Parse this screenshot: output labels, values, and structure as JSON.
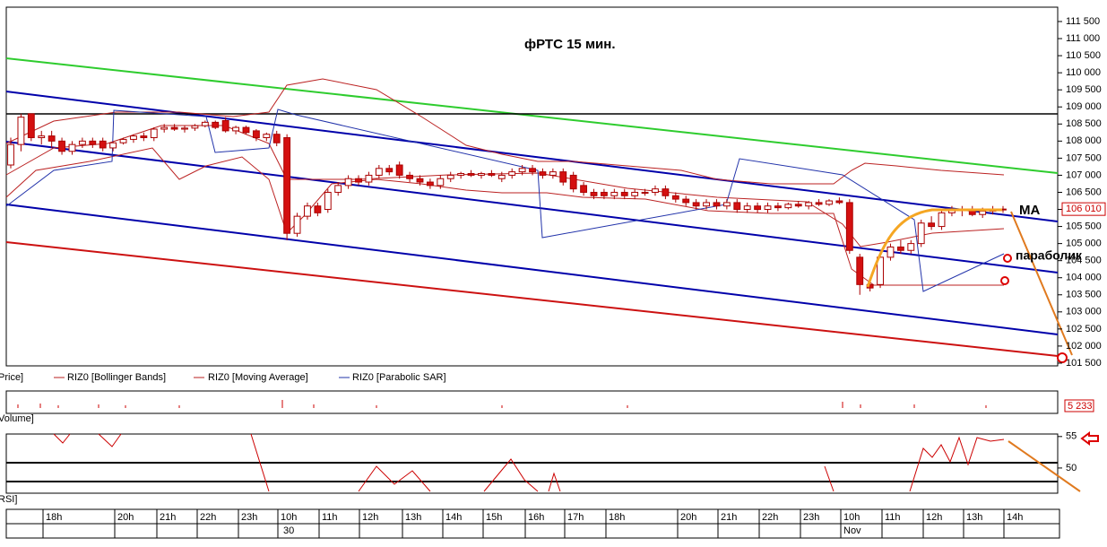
{
  "title": "фРТС  15 мин.",
  "chart_data": {
    "type": "candlestick",
    "ylim": [
      101420,
      111920
    ],
    "yticks": [
      {
        "value": 101500,
        "label": "101 500"
      },
      {
        "value": 102000,
        "label": "102 000"
      },
      {
        "value": 102500,
        "label": "102 500"
      },
      {
        "value": 103000,
        "label": "103 000"
      },
      {
        "value": 103500,
        "label": "103 500"
      },
      {
        "value": 104000,
        "label": "104 000"
      },
      {
        "value": 104500,
        "label": "104 500"
      },
      {
        "value": 105000,
        "label": "105 000"
      },
      {
        "value": 105500,
        "label": "105 500"
      },
      {
        "value": 106000,
        "label": "106 000"
      },
      {
        "value": 106500,
        "label": "106 500"
      },
      {
        "value": 107000,
        "label": "107 000"
      },
      {
        "value": 107500,
        "label": "107 500"
      },
      {
        "value": 108000,
        "label": "108 000"
      },
      {
        "value": 108500,
        "label": "108 500"
      },
      {
        "value": 109000,
        "label": "109 000"
      },
      {
        "value": 109500,
        "label": "109 500"
      },
      {
        "value": 110000,
        "label": "110 000"
      },
      {
        "value": 110500,
        "label": "110 500"
      },
      {
        "value": 111000,
        "label": "111 000"
      },
      {
        "value": 111500,
        "label": "111 500"
      }
    ],
    "last_price": {
      "value": 106010,
      "label": "106 010"
    },
    "candles": [
      [
        107300,
        108100,
        107200,
        107900
      ],
      [
        107900,
        108800,
        107700,
        108700
      ],
      [
        108800,
        108800,
        108000,
        108100
      ],
      [
        108100,
        108300,
        107900,
        108150
      ],
      [
        108150,
        108300,
        107800,
        108000
      ],
      [
        108000,
        108100,
        107600,
        107700
      ],
      [
        107700,
        108000,
        107600,
        107900
      ],
      [
        107900,
        108100,
        107800,
        108000
      ],
      [
        108000,
        108100,
        107800,
        107900
      ],
      [
        108000,
        108100,
        107700,
        107800
      ],
      [
        107800,
        108000,
        107700,
        107950
      ],
      [
        107950,
        108100,
        107900,
        108050
      ],
      [
        108050,
        108200,
        107950,
        108150
      ],
      [
        108150,
        108250,
        108000,
        108100
      ],
      [
        108100,
        108400,
        108000,
        108350
      ],
      [
        108350,
        108500,
        108250,
        108400
      ],
      [
        108400,
        108500,
        108300,
        108350
      ],
      [
        108350,
        108450,
        108250,
        108380
      ],
      [
        108380,
        108500,
        108300,
        108450
      ],
      [
        108450,
        108600,
        108400,
        108550
      ],
      [
        108550,
        108600,
        108350,
        108400
      ],
      [
        108600,
        108700,
        108250,
        108300
      ],
      [
        108300,
        108450,
        108200,
        108400
      ],
      [
        108400,
        108450,
        108200,
        108250
      ],
      [
        108300,
        108350,
        108000,
        108100
      ],
      [
        108100,
        108250,
        108000,
        108200
      ],
      [
        108200,
        108300,
        107850,
        107950
      ],
      [
        108100,
        108200,
        105100,
        105300
      ],
      [
        105300,
        105900,
        105200,
        105800
      ],
      [
        105800,
        106200,
        105700,
        106100
      ],
      [
        106100,
        106200,
        105800,
        105900
      ],
      [
        106000,
        106600,
        105900,
        106500
      ],
      [
        106500,
        106800,
        106400,
        106700
      ],
      [
        106700,
        107000,
        106600,
        106900
      ],
      [
        106900,
        107000,
        106700,
        106800
      ],
      [
        106800,
        107100,
        106700,
        107000
      ],
      [
        107000,
        107300,
        106900,
        107200
      ],
      [
        107200,
        107300,
        107000,
        107100
      ],
      [
        107300,
        107400,
        106900,
        107000
      ],
      [
        107000,
        107100,
        106800,
        106900
      ],
      [
        106900,
        107000,
        106700,
        106800
      ],
      [
        106800,
        106900,
        106600,
        106700
      ],
      [
        106700,
        107000,
        106600,
        106900
      ],
      [
        106900,
        107100,
        106800,
        107000
      ],
      [
        107000,
        107100,
        106900,
        107050
      ],
      [
        107050,
        107150,
        106950,
        107000
      ],
      [
        107000,
        107100,
        106900,
        107050
      ],
      [
        107050,
        107150,
        106950,
        107000
      ],
      [
        106900,
        107100,
        106800,
        107000
      ],
      [
        107000,
        107200,
        106900,
        107100
      ],
      [
        107100,
        107300,
        107000,
        107200
      ],
      [
        107200,
        107300,
        107000,
        107100
      ],
      [
        107100,
        107200,
        106900,
        107000
      ],
      [
        107000,
        107200,
        106900,
        107100
      ],
      [
        107100,
        107200,
        106700,
        106800
      ],
      [
        107000,
        107100,
        106500,
        106600
      ],
      [
        106700,
        106800,
        106400,
        106500
      ],
      [
        106500,
        106600,
        106300,
        106400
      ],
      [
        106500,
        106600,
        106300,
        106400
      ],
      [
        106400,
        106600,
        106300,
        106500
      ],
      [
        106500,
        106600,
        106300,
        106400
      ],
      [
        106400,
        106600,
        106300,
        106500
      ],
      [
        106500,
        106600,
        106400,
        106500
      ],
      [
        106500,
        106700,
        106400,
        106600
      ],
      [
        106600,
        106700,
        106300,
        106400
      ],
      [
        106400,
        106500,
        106200,
        106300
      ],
      [
        106300,
        106400,
        106100,
        106200
      ],
      [
        106200,
        106300,
        106000,
        106100
      ],
      [
        106100,
        106300,
        106000,
        106200
      ],
      [
        106200,
        106300,
        106000,
        106100
      ],
      [
        106100,
        106300,
        106000,
        106200
      ],
      [
        106200,
        106300,
        105900,
        106000
      ],
      [
        106000,
        106200,
        105900,
        106100
      ],
      [
        106100,
        106200,
        105900,
        106000
      ],
      [
        106000,
        106200,
        105900,
        106100
      ],
      [
        106100,
        106200,
        105950,
        106050
      ],
      [
        106050,
        106200,
        106000,
        106150
      ],
      [
        106150,
        106250,
        106050,
        106100
      ],
      [
        106100,
        106250,
        106000,
        106200
      ],
      [
        106200,
        106300,
        106100,
        106150
      ],
      [
        106150,
        106300,
        106100,
        106250
      ],
      [
        106250,
        106350,
        106150,
        106200
      ],
      [
        106200,
        106300,
        104700,
        104800
      ],
      [
        104600,
        104700,
        103500,
        103800
      ],
      [
        103800,
        104000,
        103600,
        103700
      ],
      [
        103800,
        104700,
        103700,
        104600
      ],
      [
        104600,
        105000,
        104500,
        104900
      ],
      [
        104900,
        105100,
        104700,
        104800
      ],
      [
        104800,
        105100,
        104700,
        105000
      ],
      [
        105000,
        105700,
        104900,
        105600
      ],
      [
        105600,
        105800,
        105400,
        105500
      ],
      [
        105500,
        106000,
        105400,
        105900
      ],
      [
        105900,
        106100,
        105800,
        106000
      ],
      [
        106000,
        106100,
        105800,
        106000
      ],
      [
        106000,
        106100,
        105800,
        105850
      ],
      [
        105850,
        106050,
        105750,
        105950
      ],
      [
        105950,
        106100,
        105850,
        106000
      ],
      [
        106000,
        106100,
        105900,
        106010
      ]
    ],
    "annotations": [
      "MA",
      "параболик"
    ],
    "legend": [
      "Price]",
      "RIZ0 [Bollinger Bands]",
      "RIZ0 [Moving Average]",
      "RIZ0 [Parabolic SAR]"
    ],
    "volume": {
      "label": "Volume]",
      "last": "5 233"
    },
    "rsi": {
      "label": "RSI]",
      "ylim": [
        46,
        55.4
      ],
      "ticks": [
        55,
        50
      ]
    },
    "time_labels": [
      "18h",
      "20h",
      "21h",
      "22h",
      "23h",
      "10h",
      "11h",
      "12h",
      "13h",
      "14h",
      "15h",
      "16h",
      "17h",
      "18h",
      "20h",
      "21h",
      "22h",
      "23h",
      "10h",
      "11h",
      "12h",
      "13h",
      "14h"
    ],
    "date_labels": [
      "30",
      "Nov"
    ]
  }
}
